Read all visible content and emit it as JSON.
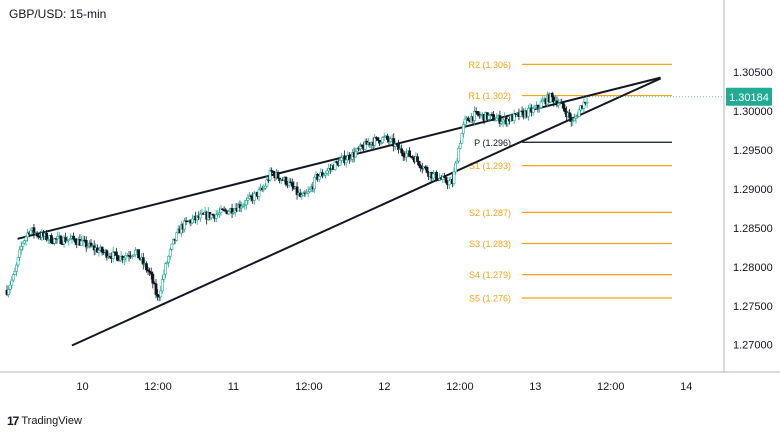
{
  "chart_data": {
    "type": "candlestick",
    "title": "GBP/USD: 15-min",
    "ylim": [
      1.2665,
      1.3135
    ],
    "y_ticks": [
      "1.30500",
      "1.30000",
      "1.29500",
      "1.29000",
      "1.28500",
      "1.28000",
      "1.27500",
      "1.27000"
    ],
    "y_tick_values": [
      1.305,
      1.3,
      1.295,
      1.29,
      1.285,
      1.28,
      1.275,
      1.27
    ],
    "x_ticks": [
      "10",
      "12:00",
      "11",
      "12:00",
      "12",
      "12:00",
      "13",
      "12:00",
      "14"
    ],
    "x_tick_positions": [
      0.5,
      1.0,
      1.5,
      2.0,
      2.5,
      3.0,
      3.5,
      4.0,
      4.5
    ],
    "x_range": [
      0.0,
      4.75
    ],
    "last_price": "1.30184",
    "last_price_value": 1.30184,
    "last_price_color": "#22ab94",
    "up_color": "#22ab94",
    "down_color": "#131722",
    "level_color": "#f7a21b",
    "pivot_levels": [
      {
        "label": "R2 (1.306)",
        "value": 1.306,
        "kind": "resistance"
      },
      {
        "label": "R1 (1.302)",
        "value": 1.302,
        "kind": "resistance"
      },
      {
        "label": "P (1.296)",
        "value": 1.296,
        "kind": "pivot"
      },
      {
        "label": "S1 (1.293)",
        "value": 1.293,
        "kind": "support"
      },
      {
        "label": "S2 (1.287)",
        "value": 1.287,
        "kind": "support"
      },
      {
        "label": "S3 (1.283)",
        "value": 1.283,
        "kind": "support"
      },
      {
        "label": "S4 (1.279)",
        "value": 1.279,
        "kind": "support"
      },
      {
        "label": "S5 (1.276)",
        "value": 1.276,
        "kind": "support"
      }
    ],
    "trendlines": [
      {
        "name": "upper",
        "x": [
          0.07,
          4.33
        ],
        "y": [
          1.2836,
          1.3043
        ]
      },
      {
        "name": "lower",
        "x": [
          0.43,
          4.33
        ],
        "y": [
          1.2699,
          1.3042
        ]
      }
    ],
    "price_path": {
      "x": [
        0.0,
        0.05,
        0.1,
        0.15,
        0.2,
        0.3,
        0.45,
        0.55,
        0.65,
        0.75,
        0.85,
        0.95,
        1.0,
        1.05,
        1.1,
        1.15,
        1.2,
        1.3,
        1.4,
        1.5,
        1.6,
        1.7,
        1.75,
        1.8,
        1.85,
        1.9,
        1.95,
        2.0,
        2.05,
        2.1,
        2.15,
        2.2,
        2.3,
        2.4,
        2.5,
        2.55,
        2.6,
        2.7,
        2.8,
        2.85,
        2.9,
        2.95,
        3.0,
        3.03,
        3.06,
        3.1,
        3.2,
        3.3,
        3.4,
        3.5,
        3.55,
        3.6,
        3.65,
        3.7,
        3.75,
        3.8,
        3.85
      ],
      "y": [
        1.277,
        1.279,
        1.283,
        1.2848,
        1.2842,
        1.2835,
        1.2835,
        1.2826,
        1.2818,
        1.2812,
        1.282,
        1.279,
        1.2758,
        1.28,
        1.283,
        1.285,
        1.2858,
        1.2865,
        1.2868,
        1.2875,
        1.2885,
        1.29,
        1.2922,
        1.2915,
        1.291,
        1.29,
        1.2888,
        1.2895,
        1.2915,
        1.292,
        1.2928,
        1.2935,
        1.2945,
        1.296,
        1.2965,
        1.296,
        1.295,
        1.294,
        1.292,
        1.2915,
        1.291,
        1.2908,
        1.296,
        1.2985,
        1.299,
        1.2995,
        1.2992,
        1.2988,
        1.2995,
        1.3002,
        1.3012,
        1.3018,
        1.3012,
        1.3,
        1.2985,
        1.3005,
        1.3018
      ]
    }
  },
  "branding": {
    "logo_text": "17",
    "name": "TradingView"
  }
}
